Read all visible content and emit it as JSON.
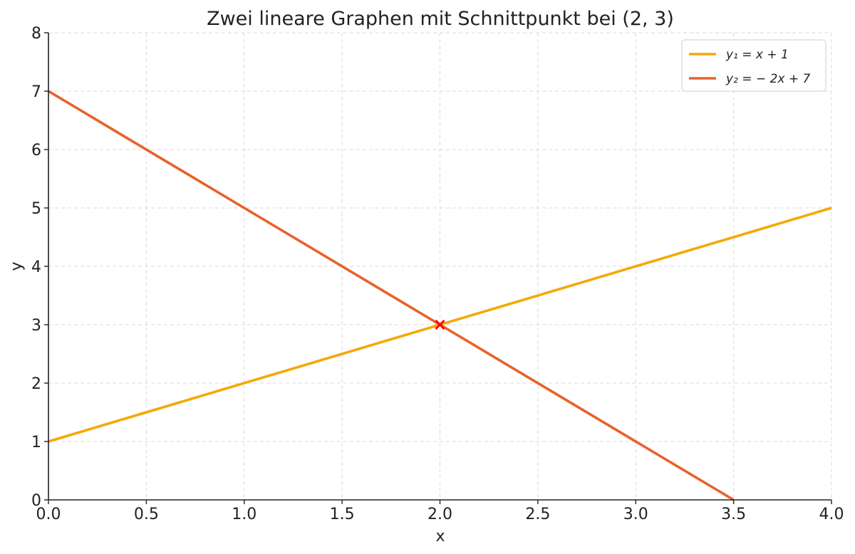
{
  "chart_data": {
    "type": "line",
    "title": "Zwei lineare Graphen mit Schnittpunkt bei (2, 3)",
    "xlabel": "x",
    "ylabel": "y",
    "xlim": [
      0,
      4
    ],
    "ylim": [
      0,
      8
    ],
    "x_ticks": [
      "0.0",
      "0.5",
      "1.0",
      "1.5",
      "2.0",
      "2.5",
      "3.0",
      "3.5",
      "4.0"
    ],
    "y_ticks": [
      "0",
      "1",
      "2",
      "3",
      "4",
      "5",
      "6",
      "7",
      "8"
    ],
    "grid": true,
    "legend_position": "top-right",
    "series": [
      {
        "name": "y₁ = x + 1",
        "color": "#F5A800",
        "x": [
          0,
          4
        ],
        "y": [
          1,
          5
        ]
      },
      {
        "name": "y₂ = − 2x + 7",
        "color": "#E8622A",
        "x": [
          0,
          3.5
        ],
        "y": [
          7,
          0
        ]
      }
    ],
    "annotations": [
      {
        "type": "marker",
        "symbol": "x",
        "color": "#FF0000",
        "x": 2,
        "y": 3
      }
    ]
  }
}
